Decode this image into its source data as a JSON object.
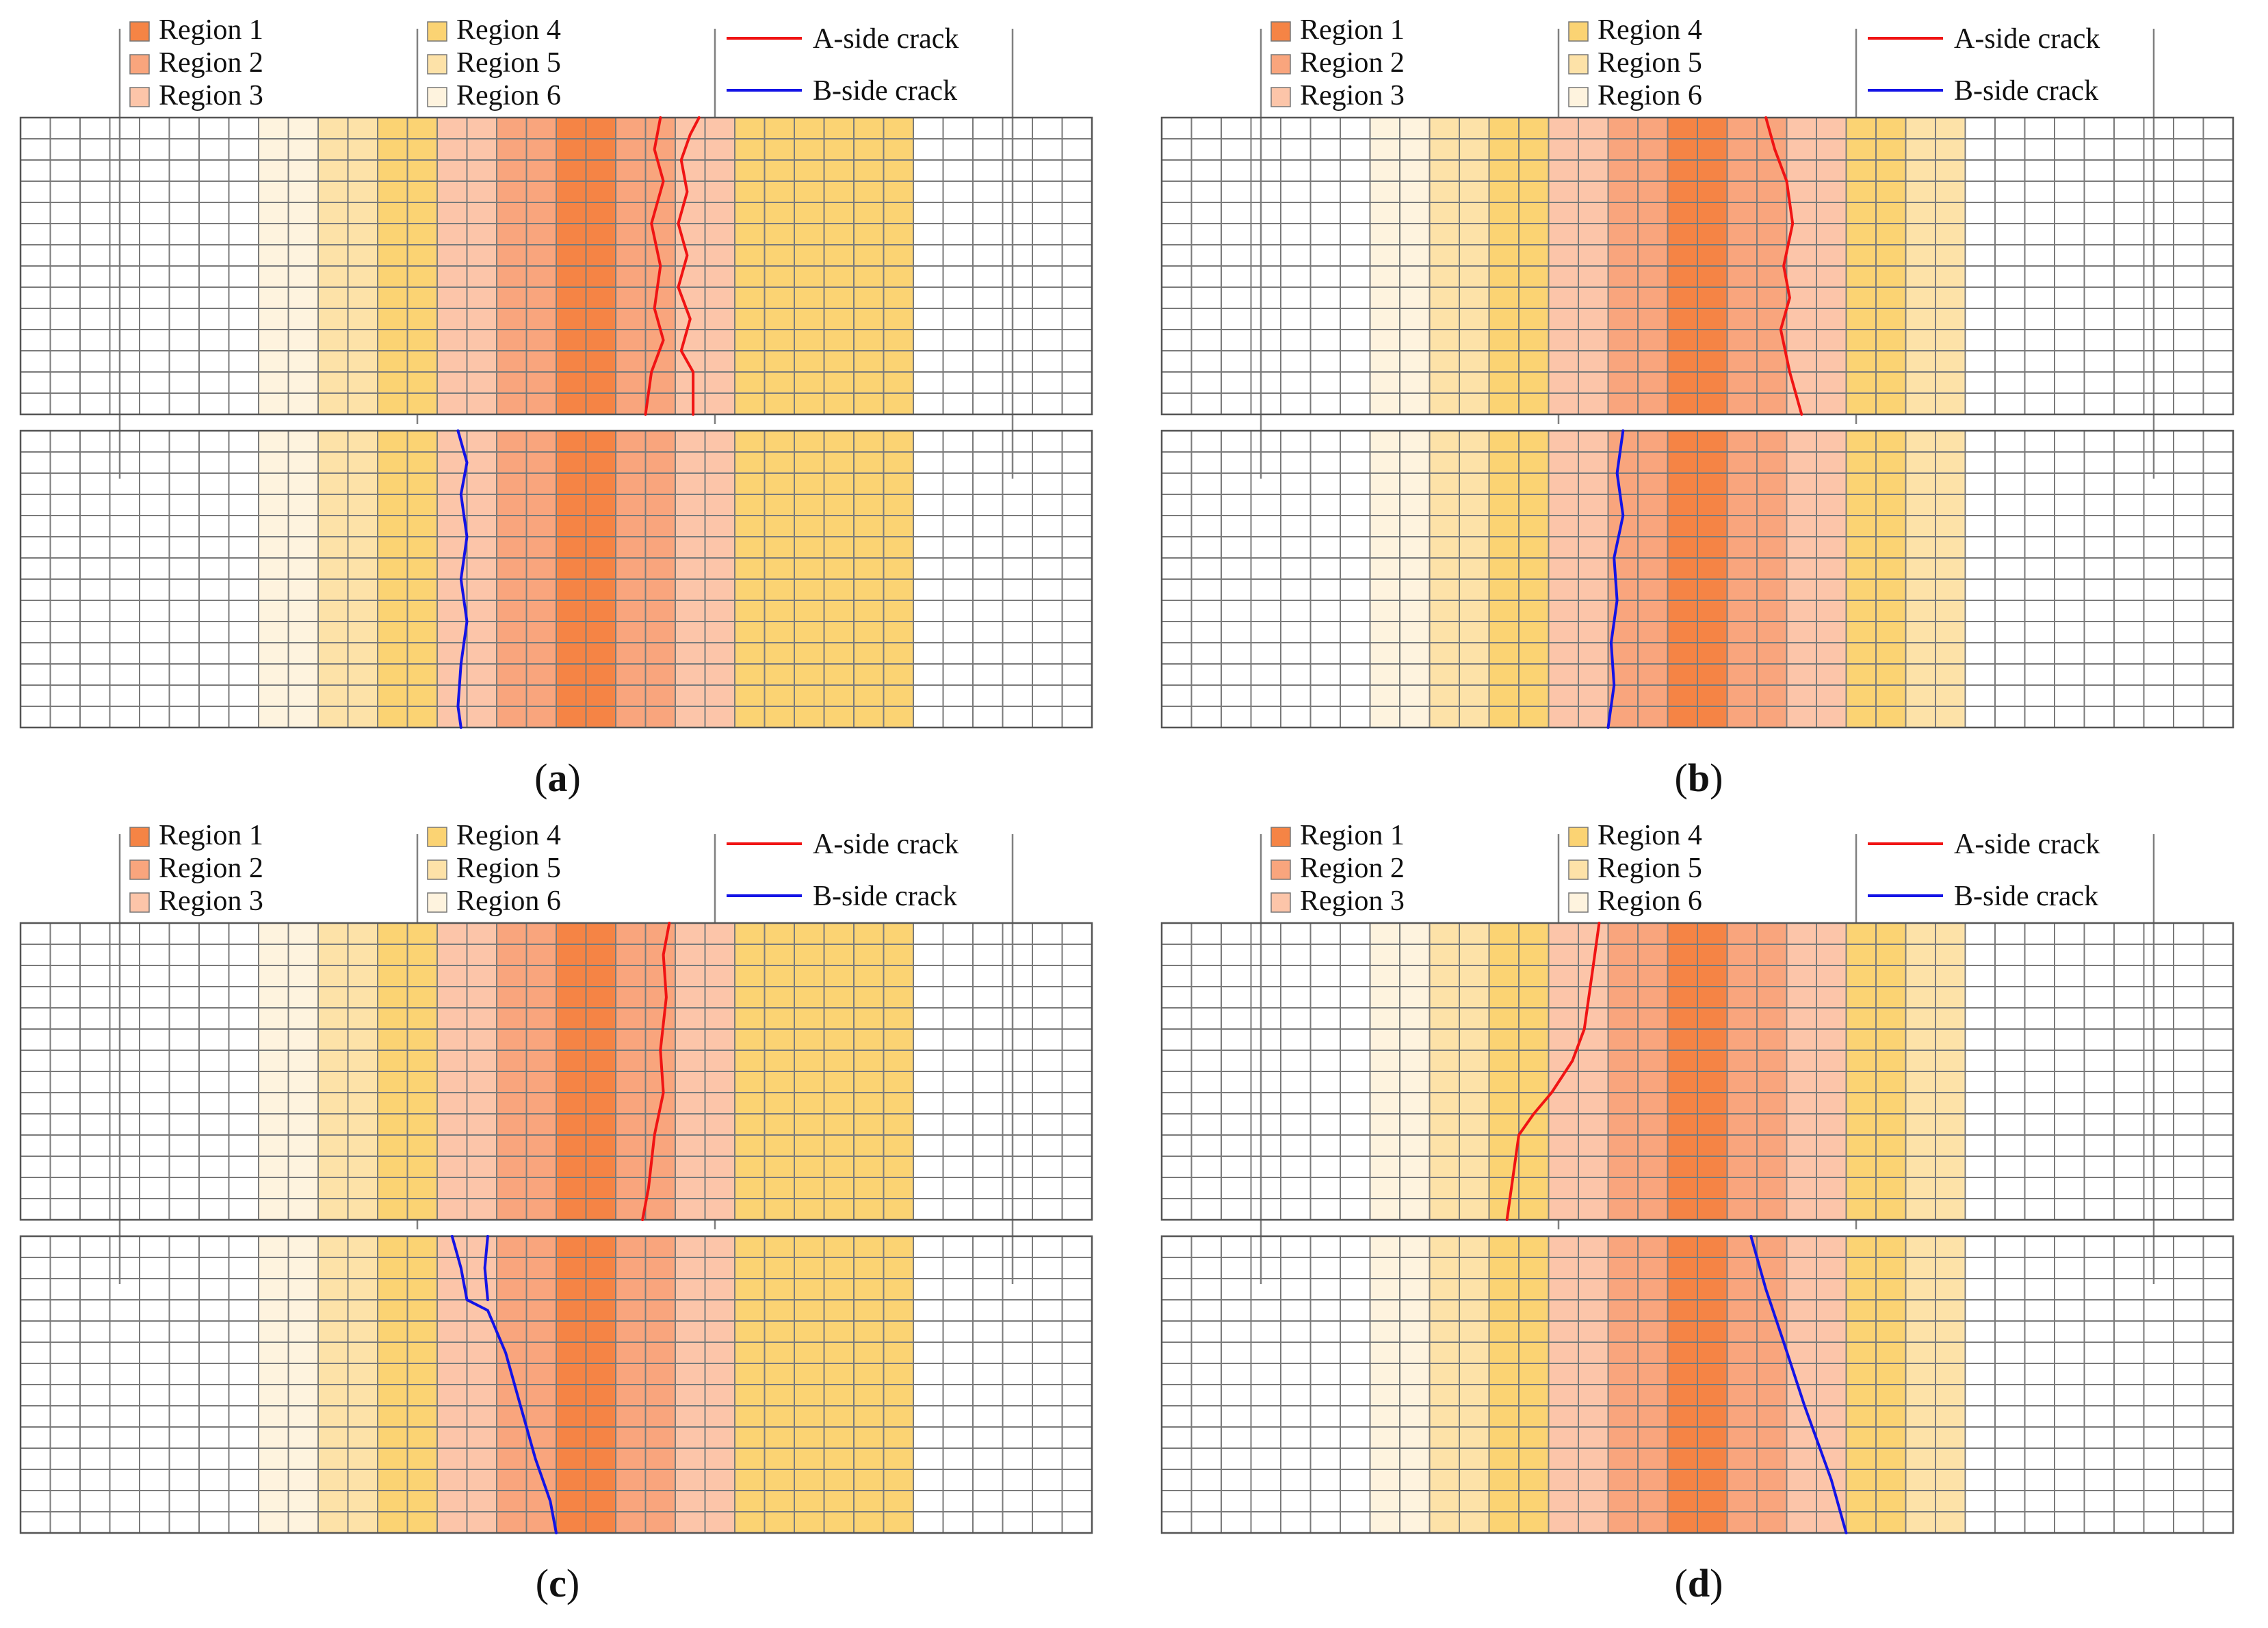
{
  "legend": {
    "regions": [
      {
        "label": "Region 1",
        "color": "#F58445"
      },
      {
        "label": "Region 2",
        "color": "#F9A57D"
      },
      {
        "label": "Region 3",
        "color": "#FCC5A9"
      },
      {
        "label": "Region 4",
        "color": "#FBD373"
      },
      {
        "label": "Region 5",
        "color": "#FDE2A8"
      },
      {
        "label": "Region 6",
        "color": "#FEF3DE"
      }
    ],
    "cracks": [
      {
        "label": "A-side crack",
        "color": "#F01414"
      },
      {
        "label": "B-side crack",
        "color": "#1414E6"
      }
    ]
  },
  "mesh": {
    "columns": 36,
    "rows_per_strip": 14,
    "strips": [
      "A",
      "B"
    ]
  },
  "panels": [
    {
      "label": "a",
      "region_columns": [
        0,
        0,
        0,
        0,
        0,
        0,
        0,
        0,
        6,
        6,
        5,
        5,
        4,
        4,
        3,
        3,
        2,
        2,
        1,
        1,
        2,
        2,
        3,
        3,
        4,
        4,
        4,
        4,
        4,
        4,
        0,
        0,
        0,
        0,
        0,
        0
      ],
      "a_cracks": [
        [
          [
            22.8,
            0
          ],
          [
            22.5,
            0.8
          ],
          [
            22.2,
            2
          ],
          [
            22.4,
            3.5
          ],
          [
            22.1,
            5
          ],
          [
            22.4,
            6.5
          ],
          [
            22.1,
            8
          ],
          [
            22.5,
            9.5
          ],
          [
            22.2,
            11
          ],
          [
            22.6,
            12
          ],
          [
            22.6,
            14
          ]
        ],
        [
          [
            21.5,
            0
          ],
          [
            21.3,
            1.5
          ],
          [
            21.6,
            3
          ],
          [
            21.2,
            5
          ],
          [
            21.5,
            7
          ],
          [
            21.3,
            9
          ],
          [
            21.6,
            10.5
          ],
          [
            21.2,
            12
          ],
          [
            21,
            14
          ]
        ]
      ],
      "b_cracks": [
        [
          [
            14.7,
            0
          ],
          [
            15,
            1.5
          ],
          [
            14.8,
            3
          ],
          [
            15,
            5
          ],
          [
            14.8,
            7
          ],
          [
            15,
            9
          ],
          [
            14.8,
            11
          ],
          [
            14.7,
            13
          ],
          [
            14.8,
            14
          ]
        ]
      ]
    },
    {
      "label": "b",
      "region_columns": [
        0,
        0,
        0,
        0,
        0,
        0,
        0,
        6,
        6,
        5,
        5,
        4,
        4,
        3,
        3,
        2,
        2,
        1,
        1,
        2,
        2,
        3,
        3,
        4,
        4,
        5,
        5,
        0,
        0,
        0,
        0,
        0,
        0,
        0,
        0,
        0
      ],
      "a_cracks": [
        [
          [
            20.3,
            0
          ],
          [
            20.6,
            1.5
          ],
          [
            21,
            3
          ],
          [
            21.2,
            5
          ],
          [
            20.9,
            7
          ],
          [
            21.1,
            8.5
          ],
          [
            20.8,
            10
          ],
          [
            21.1,
            12
          ],
          [
            21.5,
            14
          ]
        ]
      ],
      "b_cracks": [
        [
          [
            15.5,
            0
          ],
          [
            15.3,
            2
          ],
          [
            15.5,
            4
          ],
          [
            15.2,
            6
          ],
          [
            15.3,
            8
          ],
          [
            15.1,
            10
          ],
          [
            15.2,
            12
          ],
          [
            15,
            14
          ]
        ]
      ]
    },
    {
      "label": "c",
      "region_columns": [
        0,
        0,
        0,
        0,
        0,
        0,
        0,
        0,
        6,
        6,
        5,
        5,
        4,
        4,
        3,
        3,
        2,
        2,
        1,
        1,
        2,
        2,
        3,
        3,
        4,
        4,
        4,
        4,
        4,
        4,
        0,
        0,
        0,
        0,
        0,
        0
      ],
      "a_cracks": [
        [
          [
            21.8,
            0
          ],
          [
            21.6,
            1.5
          ],
          [
            21.7,
            3.5
          ],
          [
            21.5,
            6
          ],
          [
            21.6,
            8
          ],
          [
            21.3,
            10
          ],
          [
            21.1,
            12.5
          ],
          [
            20.9,
            14
          ]
        ]
      ],
      "b_cracks": [
        [
          [
            14.5,
            0
          ],
          [
            14.8,
            1.5
          ],
          [
            15,
            3
          ],
          [
            15.7,
            3.5
          ],
          [
            16.3,
            5.5
          ],
          [
            16.8,
            8
          ],
          [
            17.3,
            10.5
          ],
          [
            17.8,
            12.5
          ],
          [
            18,
            14
          ]
        ],
        [
          [
            15.7,
            0
          ],
          [
            15.6,
            1.5
          ],
          [
            15.7,
            3
          ]
        ]
      ]
    },
    {
      "label": "d",
      "region_columns": [
        0,
        0,
        0,
        0,
        0,
        0,
        0,
        6,
        6,
        5,
        5,
        4,
        4,
        3,
        3,
        2,
        2,
        1,
        1,
        2,
        2,
        3,
        3,
        4,
        4,
        5,
        5,
        0,
        0,
        0,
        0,
        0,
        0,
        0,
        0,
        0
      ],
      "a_cracks": [
        [
          [
            14.7,
            0
          ],
          [
            14.5,
            2
          ],
          [
            14.2,
            5
          ],
          [
            13.8,
            6.5
          ],
          [
            13.1,
            8
          ],
          [
            12.5,
            9
          ],
          [
            12,
            10
          ],
          [
            11.8,
            12
          ],
          [
            11.6,
            14
          ]
        ]
      ],
      "b_cracks": [
        [
          [
            19.8,
            0
          ],
          [
            20.3,
            2.5
          ],
          [
            20.9,
            5
          ],
          [
            21.6,
            8
          ],
          [
            22.5,
            11.5
          ],
          [
            23,
            14
          ]
        ]
      ]
    }
  ],
  "caption_format": "(X)"
}
